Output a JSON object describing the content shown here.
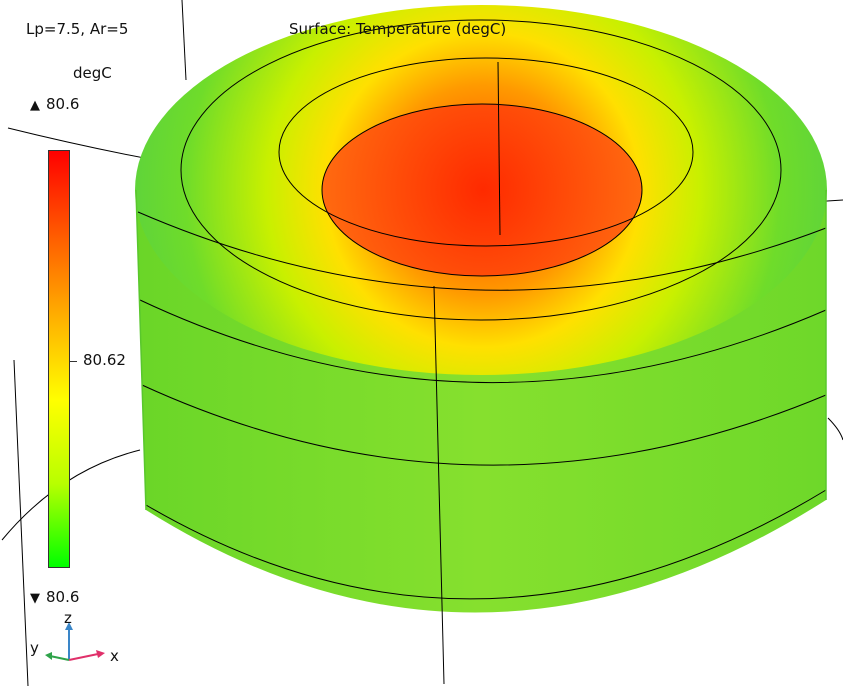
{
  "window": {
    "parameter_text": "Lp=7.5, Ar=5",
    "plot_title": "Surface: Temperature (degC)"
  },
  "legend": {
    "unit": "degC",
    "max_value": "80.6",
    "mid_value": "80.62",
    "min_value": "80.6",
    "max_arrow": "▲",
    "min_arrow": "▼",
    "colormap": [
      "#00ff00",
      "#b8ff00",
      "#ffff00",
      "#ffb000",
      "#ff5a00",
      "#ff0000"
    ]
  },
  "axes": {
    "x_label": "x",
    "y_label": "y",
    "z_label": "z",
    "x_color": "#e0306a",
    "y_color": "#2fa34a",
    "z_color": "#3a86c8"
  },
  "model": {
    "geometry": "annular cylinder",
    "inner_hot_color": "#ff4a00",
    "body_color": "#7ee02a",
    "edge_color": "#000000"
  }
}
